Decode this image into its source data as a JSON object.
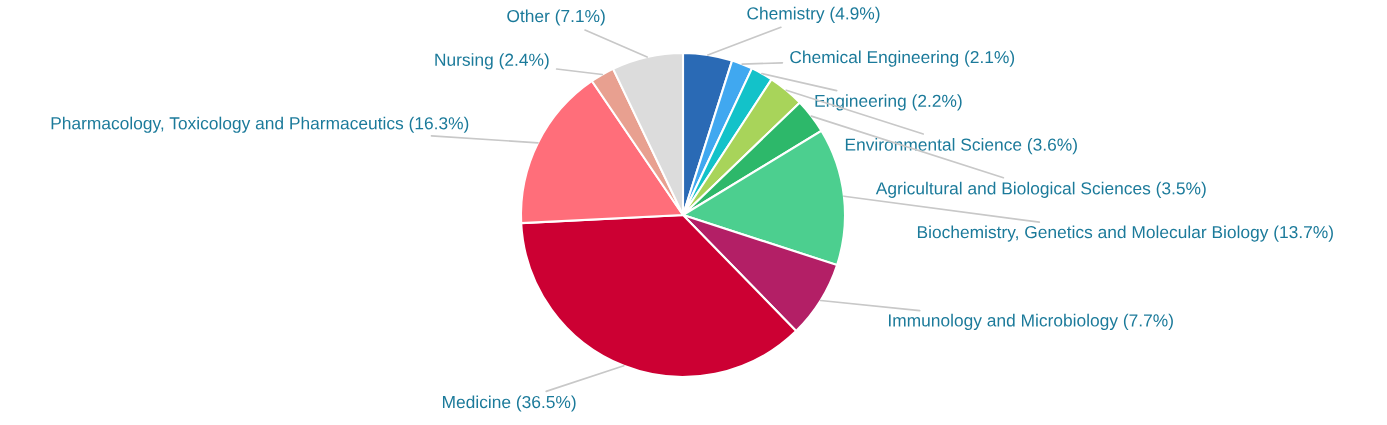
{
  "chart_data": {
    "type": "pie",
    "categories": [
      "Chemistry (4.9%)",
      "Chemical Engineering (2.1%)",
      "Engineering (2.2%)",
      "Environmental Science (3.6%)",
      "Agricultural and Biological Sciences (3.5%)",
      "Biochemistry, Genetics and Molecular Biology (13.7%)",
      "Immunology and Microbiology (7.7%)",
      "Medicine (36.5%)",
      "Pharmacology, Toxicology and Pharmaceutics (16.3%)",
      "Nursing (2.4%)",
      "Other (7.1%)"
    ],
    "values": [
      4.9,
      2.1,
      2.2,
      3.6,
      3.5,
      13.7,
      7.7,
      36.5,
      16.3,
      2.4,
      7.1
    ],
    "colors": [
      "#2a6ab5",
      "#40a8f0",
      "#13c2c9",
      "#a8d45a",
      "#2db86a",
      "#4ccf8f",
      "#b31f66",
      "#cc0033",
      "#ff6e7a",
      "#e8a090",
      "#dcdcdc"
    ],
    "legend": false
  }
}
